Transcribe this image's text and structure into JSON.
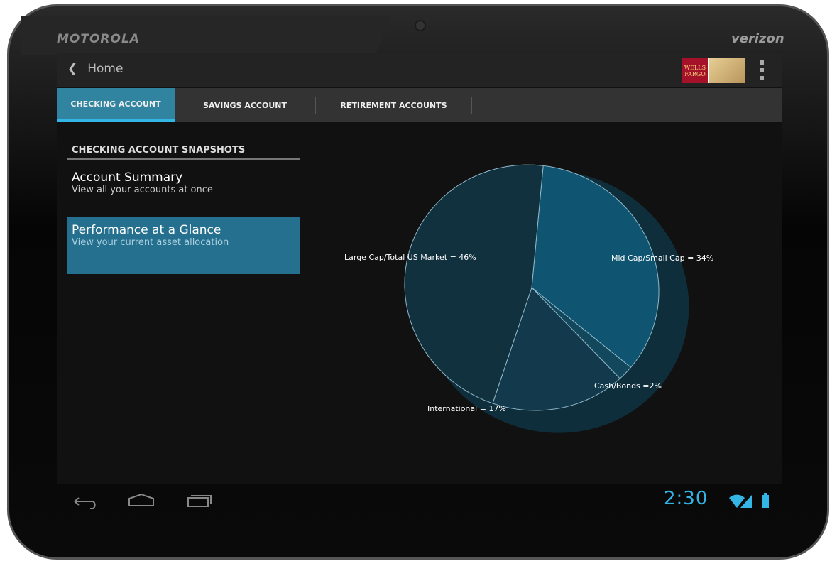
{
  "device": {
    "brand": "MOTOROLA",
    "carrier": "verizon"
  },
  "actionbar": {
    "back_label": "Home",
    "logo_text": "WELLS FARGO"
  },
  "tabs": [
    {
      "label": "CHECKING ACCOUNT",
      "active": true
    },
    {
      "label": "SAVINGS ACCOUNT",
      "active": false
    },
    {
      "label": "RETIREMENT ACCOUNTS",
      "active": false
    }
  ],
  "sidebar": {
    "title": "CHECKING ACCOUNT SNAPSHOTS",
    "items": [
      {
        "title": "Account Summary",
        "subtitle": "View all your accounts at once",
        "selected": false
      },
      {
        "title": "Performance at a Glance",
        "subtitle": "View your current asset allocation",
        "selected": true
      }
    ]
  },
  "chart_data": {
    "type": "pie",
    "slices": [
      {
        "label": "Mid Cap/Small Cap = 34%",
        "value": 34,
        "color": "#0f5470"
      },
      {
        "label": "Cash/Bonds =2%",
        "value": 2,
        "color": "#12475c"
      },
      {
        "label": "International = 17%",
        "value": 17,
        "color": "#123a4c"
      },
      {
        "label": "Large Cap/Total US Market = 46%",
        "value": 46,
        "color": "#11313f"
      }
    ]
  },
  "status": {
    "time": "2:30"
  },
  "colors": {
    "accent": "#33b5e5",
    "selected_tab": "#31849f"
  }
}
